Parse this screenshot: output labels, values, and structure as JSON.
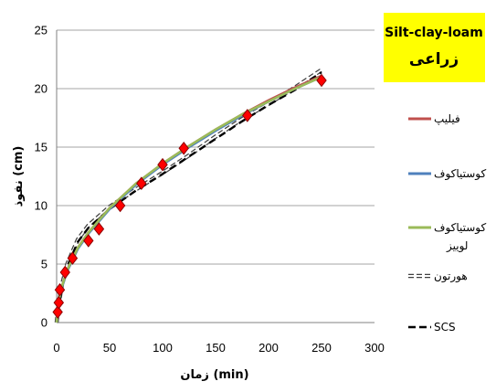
{
  "title_box": {
    "line1": "Silt-clay-loam",
    "line2": "زراعی",
    "bg": "#ffff00"
  },
  "chart_data": {
    "type": "line",
    "xlabel": "زمان (min)",
    "ylabel": "نفوذ (cm)",
    "xlim": [
      0,
      300
    ],
    "ylim": [
      0,
      25
    ],
    "xticks": [
      "0",
      "50",
      "100",
      "150",
      "200",
      "250",
      "300"
    ],
    "yticks": [
      "0",
      "5",
      "10",
      "15",
      "20",
      "25"
    ],
    "grid": "horizontal",
    "legend_position": "right",
    "observed": {
      "marker": "diamond",
      "color": "#ff0000",
      "x": [
        1,
        2,
        3,
        8,
        15,
        30,
        40,
        60,
        80,
        100,
        120,
        180,
        250
      ],
      "y": [
        0.9,
        1.7,
        2.8,
        4.3,
        5.5,
        7.0,
        8.0,
        10.0,
        11.9,
        13.5,
        14.9,
        17.7,
        20.7
      ]
    },
    "series": [
      {
        "name": "فیلیپ",
        "color": "#c0504d",
        "style": "solid",
        "x": [
          0,
          2,
          5,
          10,
          20,
          30,
          50,
          75,
          100,
          125,
          150,
          175,
          200,
          225,
          250
        ],
        "y": [
          0,
          1.9,
          3.1,
          4.5,
          6.4,
          7.7,
          9.8,
          11.9,
          13.6,
          15.1,
          16.5,
          17.8,
          19.0,
          20.1,
          21.1
        ]
      },
      {
        "name": "کوستیاکوف",
        "color": "#4f81bd",
        "style": "solid",
        "x": [
          0,
          2,
          5,
          10,
          20,
          30,
          50,
          75,
          100,
          125,
          150,
          175,
          200,
          225,
          250
        ],
        "y": [
          0,
          1.9,
          3.0,
          4.4,
          6.3,
          7.6,
          9.7,
          11.8,
          13.5,
          15.0,
          16.4,
          17.7,
          18.9,
          20.0,
          21.0
        ]
      },
      {
        "name": "کوستیاکوف لوییز",
        "color": "#9bbb59",
        "style": "solid",
        "x": [
          0,
          2,
          5,
          10,
          20,
          30,
          50,
          75,
          100,
          125,
          150,
          175,
          200,
          225,
          250
        ],
        "y": [
          0,
          1.9,
          3.1,
          4.5,
          6.4,
          7.7,
          9.8,
          11.9,
          13.6,
          15.1,
          16.5,
          17.8,
          18.9,
          20.0,
          21.0
        ]
      },
      {
        "name": "هورتون",
        "color": "#404040",
        "style": "hollow-dashed",
        "x": [
          0,
          2,
          5,
          10,
          20,
          30,
          50,
          75,
          100,
          125,
          150,
          175,
          200,
          225,
          250
        ],
        "y": [
          0,
          1.6,
          3.2,
          5.0,
          7.1,
          8.3,
          9.9,
          11.4,
          12.8,
          14.3,
          15.9,
          17.4,
          18.7,
          20.1,
          21.6
        ]
      },
      {
        "name": "SCS",
        "color": "#000000",
        "style": "dashed",
        "x": [
          0,
          2,
          5,
          10,
          20,
          30,
          50,
          75,
          100,
          125,
          150,
          175,
          200,
          225,
          250
        ],
        "y": [
          0,
          1.4,
          3.0,
          4.8,
          6.9,
          8.1,
          9.7,
          11.3,
          12.7,
          14.2,
          15.7,
          17.2,
          18.6,
          19.9,
          21.4
        ]
      }
    ]
  }
}
